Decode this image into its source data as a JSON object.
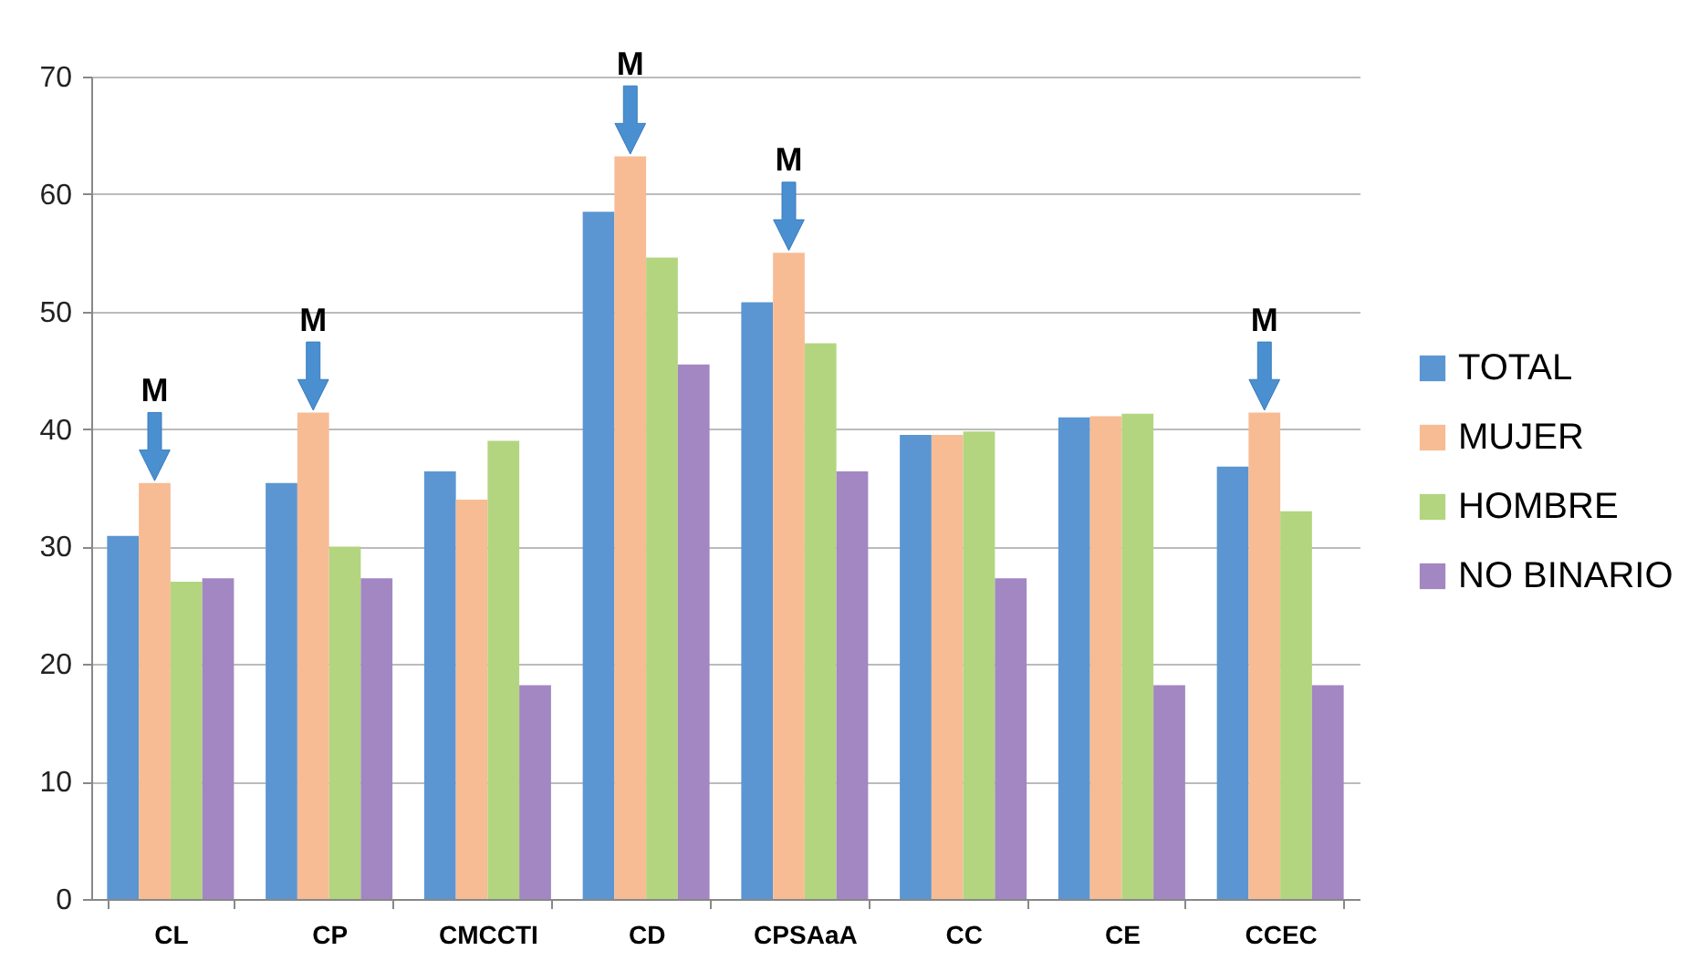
{
  "chart_data": {
    "type": "bar",
    "categories": [
      "CL",
      "CP",
      "CMCCTI",
      "CD",
      "CPSAaA",
      "CC",
      "CE",
      "CCEC"
    ],
    "series": [
      {
        "name": "TOTAL",
        "color": "#5b96d2",
        "values": [
          30.9,
          35.4,
          36.4,
          58.5,
          50.8,
          39.5,
          41,
          36.8
        ]
      },
      {
        "name": "MUJER",
        "color": "#f7bc94",
        "values": [
          35.4,
          41.4,
          34,
          63.2,
          55,
          39.5,
          41.1,
          41.4
        ]
      },
      {
        "name": "HOMBRE",
        "color": "#b3d57f",
        "values": [
          27,
          30,
          39,
          54.6,
          47.3,
          39.8,
          41.3,
          33
        ]
      },
      {
        "name": "NO BINARIO",
        "color": "#a287c2",
        "values": [
          27.3,
          27.3,
          18.2,
          45.5,
          36.4,
          27.3,
          18.2,
          18.2
        ]
      }
    ],
    "ylim": [
      0,
      70
    ],
    "yticks": [
      0,
      10,
      20,
      30,
      40,
      50,
      60,
      70
    ],
    "grid": "y",
    "legend": "right",
    "annotations": [
      {
        "text": "M",
        "x": "CL",
        "y": 35.4
      },
      {
        "text": "M",
        "x": "CP",
        "y": 41.4
      },
      {
        "text": "M",
        "x": "CD",
        "y": 63.2
      },
      {
        "text": "M",
        "x": "CPSAaA",
        "y": 55
      },
      {
        "text": "M",
        "x": "CCEC",
        "y": 41.4
      }
    ]
  }
}
